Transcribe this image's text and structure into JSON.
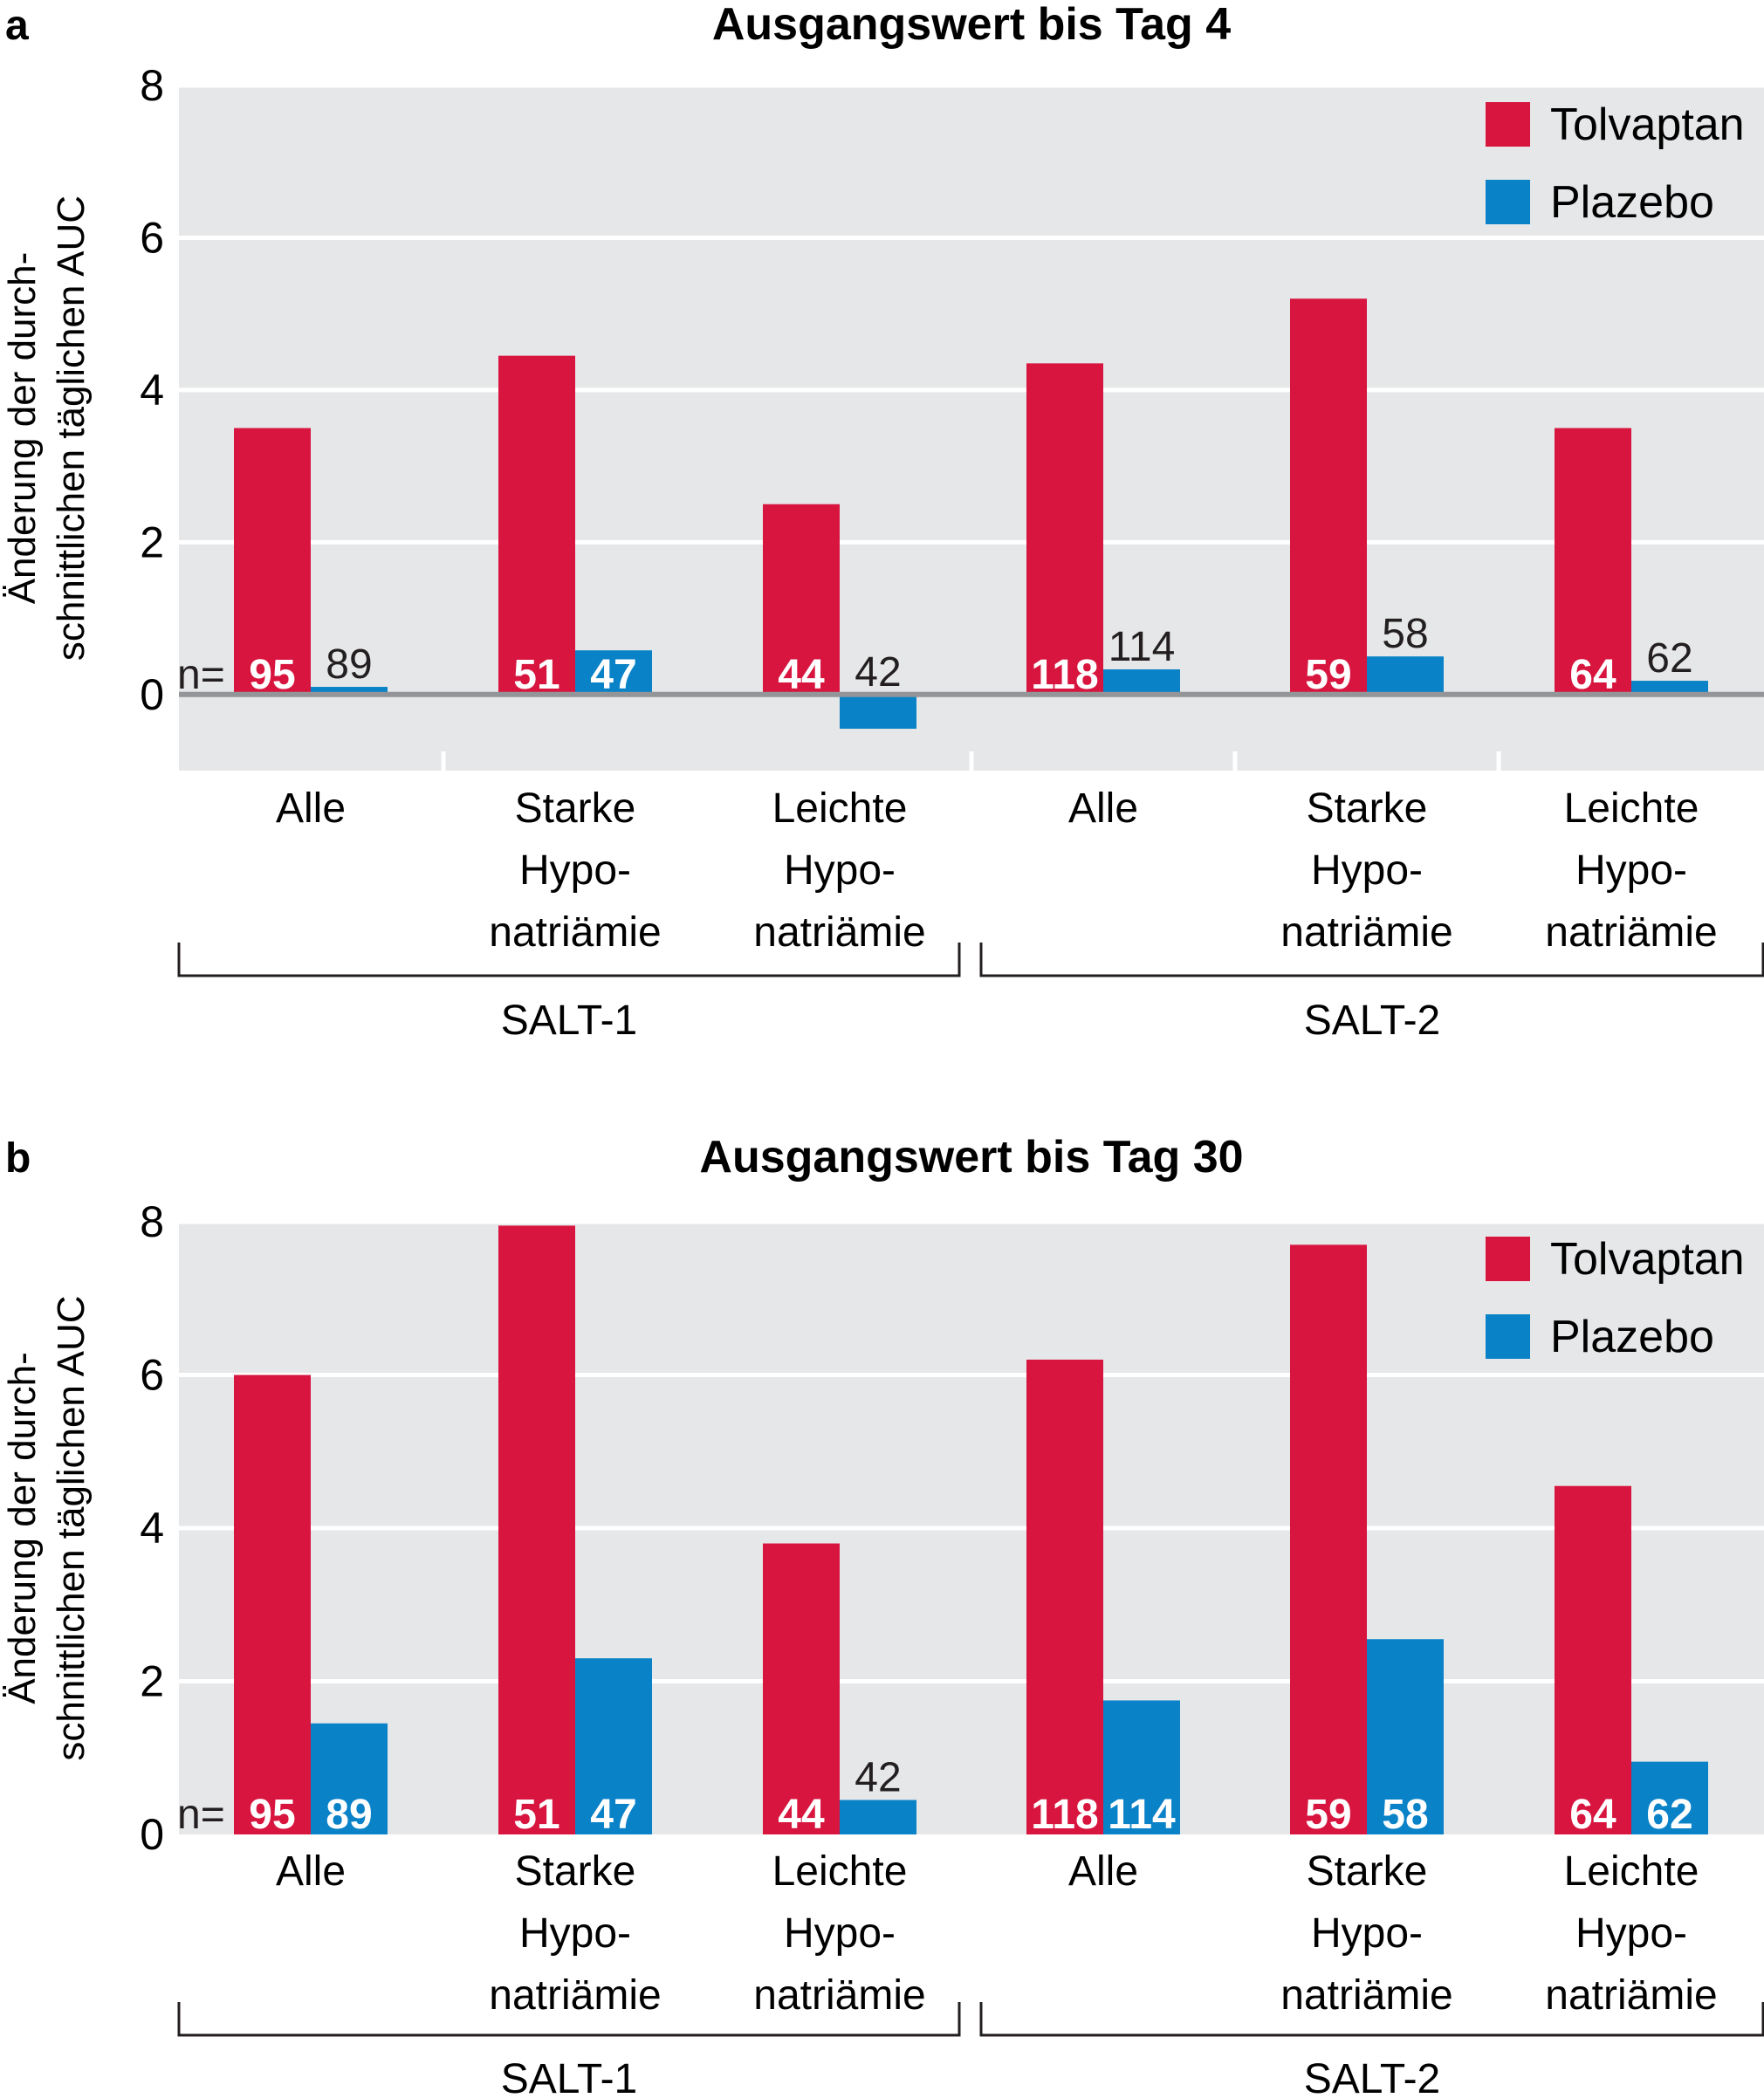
{
  "colors": {
    "tolvaptan": "#d7153f",
    "plazebo": "#0a82c8",
    "plot_bg": "#e6e7e8",
    "grid": "#ffffff",
    "zero_line": "#939598"
  },
  "legend": [
    "Tolvaptan",
    "Plazebo"
  ],
  "n_prefix": "n=",
  "chart_data": [
    {
      "type": "bar",
      "panel": "a",
      "title": "Ausgangswert bis Tag 4",
      "ylabel_lines": [
        "Änderung der durch-",
        "schnittlichen täglichen AUC"
      ],
      "ylim": [
        -1,
        8
      ],
      "yticks": [
        0,
        2,
        4,
        6,
        8
      ],
      "grid": true,
      "legend_position": "top-right",
      "categories": [
        [
          "Alle"
        ],
        [
          "Starke",
          "Hypo-",
          "natriämie"
        ],
        [
          "Leichte",
          "Hypo-",
          "natriämie"
        ],
        [
          "Alle"
        ],
        [
          "Starke",
          "Hypo-",
          "natriämie"
        ],
        [
          "Leichte",
          "Hypo-",
          "natriämie"
        ]
      ],
      "groups": [
        {
          "label": "SALT-1",
          "from": 0,
          "to": 2
        },
        {
          "label": "SALT-2",
          "from": 3,
          "to": 5
        }
      ],
      "series": [
        {
          "name": "Tolvaptan",
          "values": [
            3.5,
            4.45,
            2.5,
            4.35,
            5.2,
            3.5
          ],
          "n": [
            "95",
            "51",
            "44",
            "118",
            "59",
            "64"
          ]
        },
        {
          "name": "Plazebo",
          "values": [
            0.1,
            0.58,
            -0.45,
            0.33,
            0.5,
            0.18
          ],
          "n": [
            "89",
            "47",
            "42",
            "114",
            "58",
            "62"
          ]
        }
      ]
    },
    {
      "type": "bar",
      "panel": "b",
      "title": "Ausgangswert bis Tag 30",
      "ylabel_lines": [
        "Änderung der durch-",
        "schnittlichen täglichen AUC"
      ],
      "ylim": [
        0,
        8
      ],
      "yticks": [
        0,
        2,
        4,
        6,
        8
      ],
      "grid": true,
      "legend_position": "top-right",
      "categories": [
        [
          "Alle"
        ],
        [
          "Starke",
          "Hypo-",
          "natriämie"
        ],
        [
          "Leichte",
          "Hypo-",
          "natriämie"
        ],
        [
          "Alle"
        ],
        [
          "Starke",
          "Hypo-",
          "natriämie"
        ],
        [
          "Leichte",
          "Hypo-",
          "natriämie"
        ]
      ],
      "groups": [
        {
          "label": "SALT-1",
          "from": 0,
          "to": 2
        },
        {
          "label": "SALT-2",
          "from": 3,
          "to": 5
        }
      ],
      "series": [
        {
          "name": "Tolvaptan",
          "values": [
            6.0,
            7.95,
            3.8,
            6.2,
            7.7,
            4.55
          ],
          "n": [
            "95",
            "51",
            "44",
            "118",
            "59",
            "64"
          ]
        },
        {
          "name": "Plazebo",
          "values": [
            1.45,
            2.3,
            0.45,
            1.75,
            2.55,
            0.95
          ],
          "n": [
            "89",
            "47",
            "42",
            "114",
            "58",
            "62"
          ]
        }
      ]
    }
  ]
}
